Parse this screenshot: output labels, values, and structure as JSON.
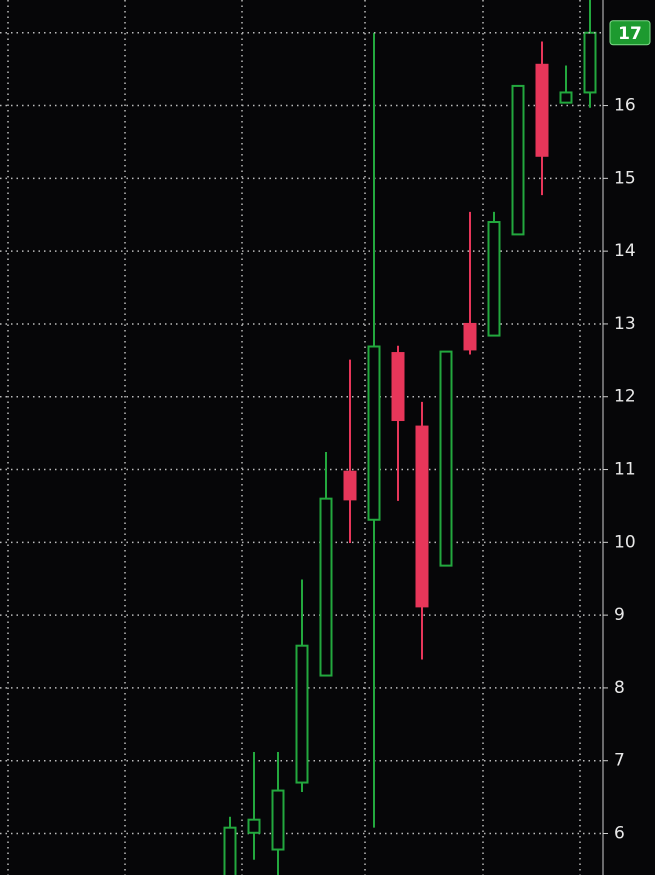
{
  "chart_data": {
    "type": "candlestick",
    "ylim": [
      5.43,
      17.45
    ],
    "yticks": [
      6,
      7,
      8,
      9,
      10,
      11,
      12,
      13,
      14,
      15,
      16
    ],
    "grid": true,
    "up_color": "#23a83e",
    "down_color": "#e8365a",
    "open": [
      5.4,
      6.01,
      5.78,
      6.7,
      8.17,
      10.97,
      10.31,
      12.6,
      11.59,
      9.68,
      13.0,
      12.84,
      14.23,
      16.56,
      16.04,
      16.18
    ],
    "high": [
      6.23,
      7.12,
      7.12,
      9.49,
      11.24,
      12.51,
      17.0,
      12.7,
      11.93,
      12.62,
      14.54,
      14.54,
      16.27,
      16.88,
      16.55,
      17.45
    ],
    "low": [
      5.35,
      5.64,
      5.43,
      6.57,
      8.17,
      9.99,
      6.08,
      10.57,
      8.39,
      9.68,
      12.58,
      12.84,
      14.23,
      14.77,
      16.04,
      15.97
    ],
    "close": [
      6.08,
      6.19,
      6.59,
      8.58,
      10.6,
      10.59,
      12.69,
      11.68,
      9.12,
      12.62,
      12.65,
      14.4,
      16.27,
      15.31,
      16.18,
      17.0
    ],
    "last_price": 17
  }
}
